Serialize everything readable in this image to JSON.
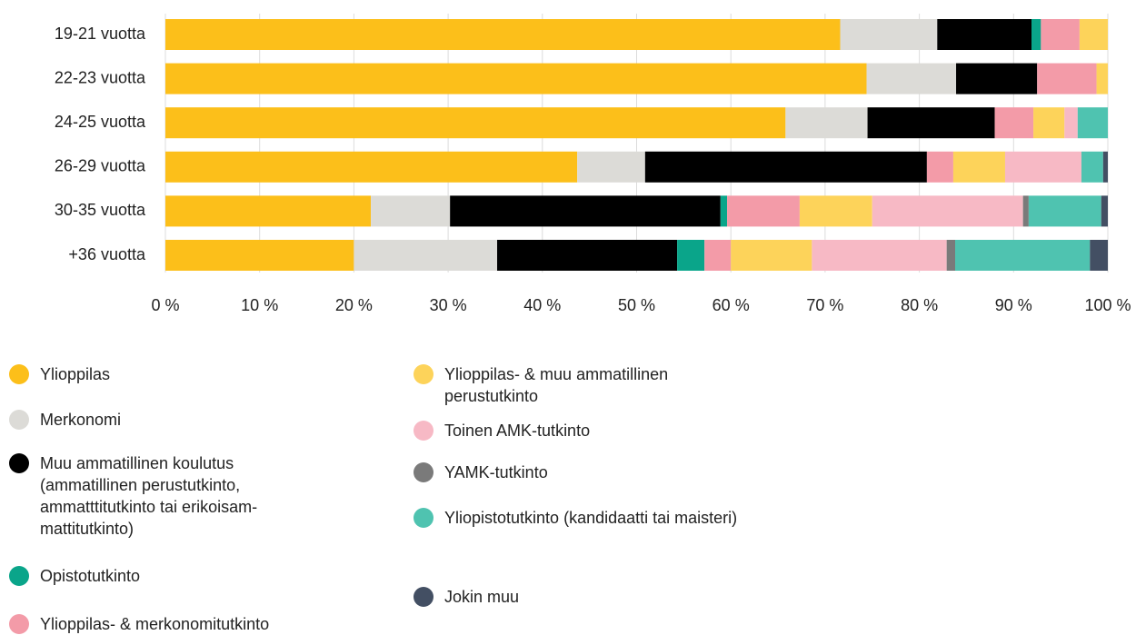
{
  "chart_data": {
    "type": "stacked-bar-horizontal",
    "categories": [
      "19-21 vuotta",
      "22-23 vuotta",
      "24-25 vuotta",
      "26-29 vuotta",
      "30-35 vuotta",
      "+36 vuotta"
    ],
    "series": [
      {
        "name": "Ylioppilas",
        "color": "#fcbf1a",
        "values": [
          71.6,
          74.4,
          65.8,
          43.7,
          21.8,
          20.0
        ]
      },
      {
        "name": "Merkonomi",
        "color": "#dcdbd7",
        "values": [
          10.3,
          9.5,
          8.7,
          7.2,
          8.4,
          15.2
        ]
      },
      {
        "name": "Muu ammatillinen koulutus (ammatillinen perustutkinto, ammatttitutkinto tai erikoisam-mattitutkinto)",
        "color": "#000000",
        "values": [
          10.0,
          8.6,
          13.5,
          29.9,
          28.7,
          19.1
        ]
      },
      {
        "name": "Opistotutkinto",
        "color": "#0aa58a",
        "values": [
          1.0,
          0,
          0,
          0,
          0.7,
          2.9
        ]
      },
      {
        "name": "Ylioppilas- & merkonomitutkinto",
        "color": "#f39ba8",
        "values": [
          4.1,
          6.3,
          4.1,
          2.8,
          7.7,
          2.8
        ]
      },
      {
        "name": "Ylioppilas- & muu ammatillinen perustutkinto",
        "color": "#fdd35a",
        "values": [
          3.0,
          1.2,
          3.3,
          5.5,
          7.7,
          8.6
        ]
      },
      {
        "name": "Toinen AMK-tutkinto",
        "color": "#f7b9c5",
        "values": [
          0,
          0,
          1.4,
          8.1,
          16.0,
          14.3
        ]
      },
      {
        "name": "YAMK-tutkinto",
        "color": "#7a7a7a",
        "values": [
          0,
          0,
          0,
          0,
          0.6,
          0.9
        ]
      },
      {
        "name": "Yliopistotutkinto (kandidaatti tai maisteri)",
        "color": "#4fc3b0",
        "values": [
          0,
          0,
          3.2,
          2.3,
          7.7,
          14.3
        ]
      },
      {
        "name": "Jokin muu",
        "color": "#434f63",
        "values": [
          0,
          0,
          0,
          0.5,
          0.7,
          1.9
        ]
      }
    ],
    "xlim": [
      0,
      100
    ],
    "xticks": [
      {
        "value": 0,
        "label": "0 %"
      },
      {
        "value": 10,
        "label": "10 %"
      },
      {
        "value": 20,
        "label": "20 %"
      },
      {
        "value": 30,
        "label": "30 %"
      },
      {
        "value": 40,
        "label": "40 %"
      },
      {
        "value": 50,
        "label": "50 %"
      },
      {
        "value": 60,
        "label": "60 %"
      },
      {
        "value": 70,
        "label": "70 %"
      },
      {
        "value": 80,
        "label": "80 %"
      },
      {
        "value": 90,
        "label": "90 %"
      },
      {
        "value": 100,
        "label": "100 %"
      }
    ],
    "grid": true
  }
}
